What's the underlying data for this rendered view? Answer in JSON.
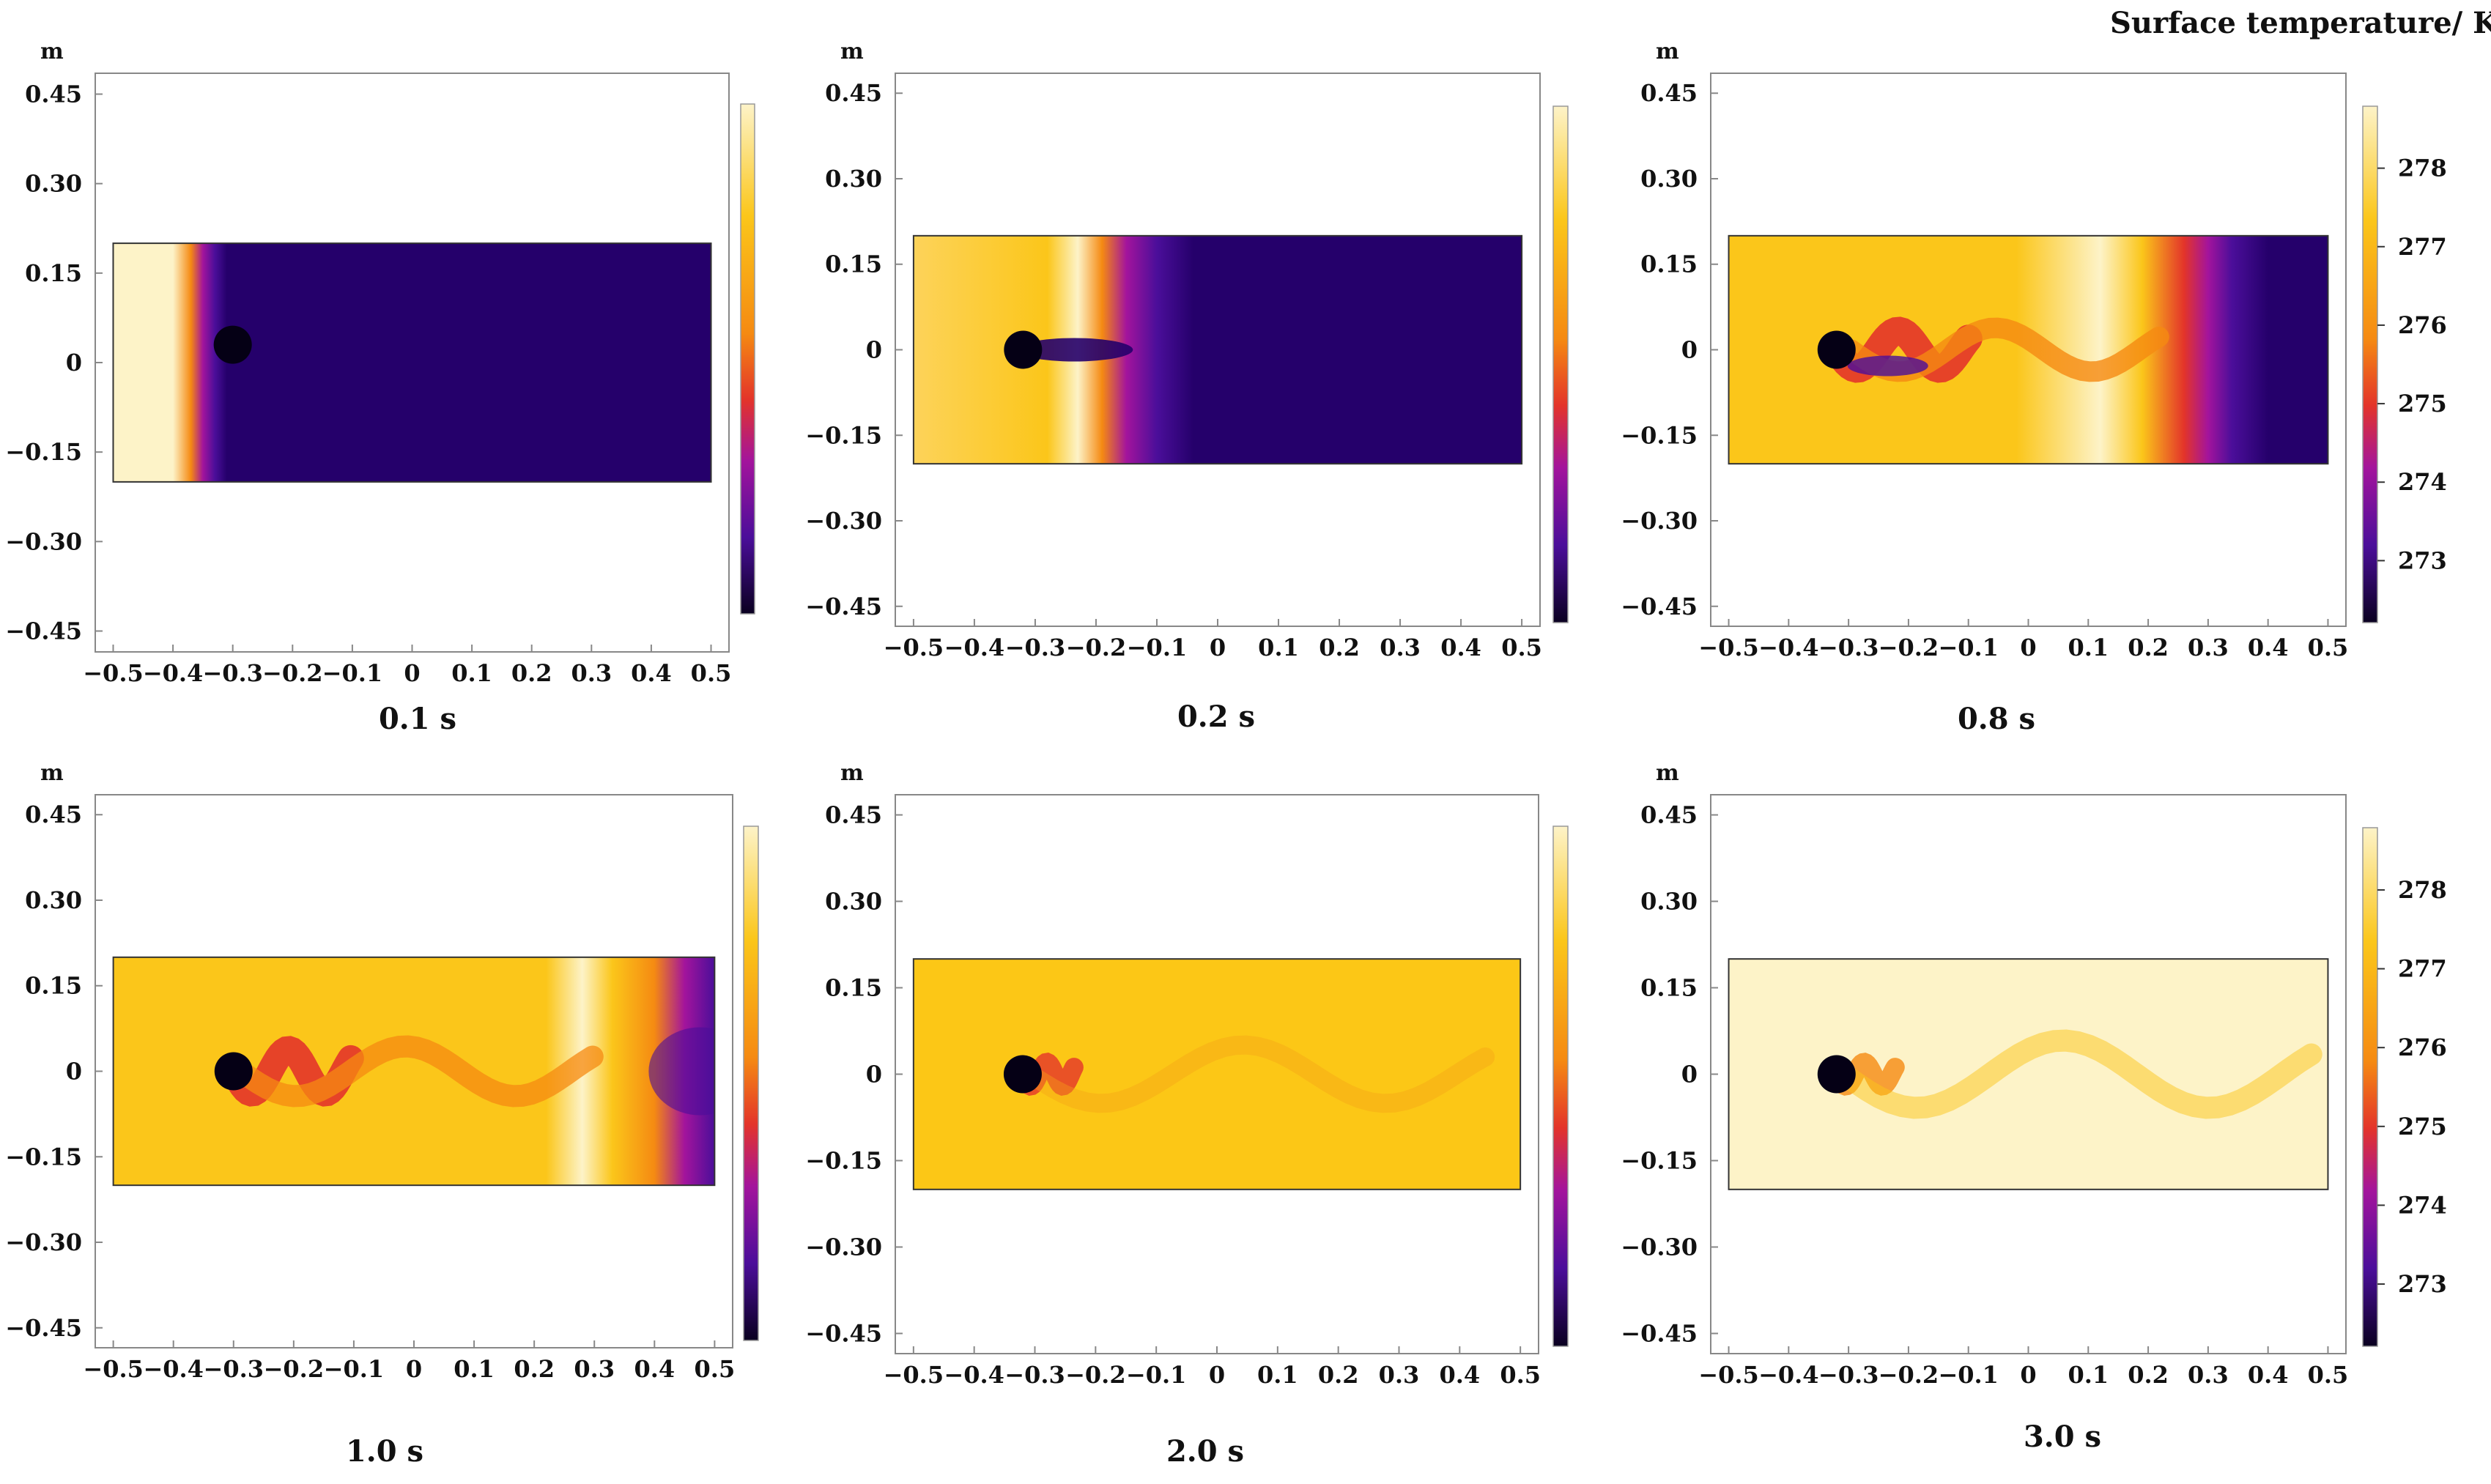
{
  "figure_title": "Surface temperature/ K",
  "colors": {
    "cold": "#25006b",
    "cold_dark": "#0a0020",
    "purple": "#4b0e9a",
    "magenta": "#a3149c",
    "red": "#e3342a",
    "orange": "#f58a12",
    "warm": "#fbc61a",
    "warm_light": "#fdd35a",
    "hot": "#fdf3c8",
    "cylinder": "#050015",
    "frame": "#888888"
  },
  "colorbar": {
    "ticks": [
      "278",
      "277",
      "276",
      "275",
      "274",
      "273"
    ]
  },
  "chart_data": [
    {
      "type": "heatmap",
      "title": "0.1 s",
      "ylabel": "m",
      "xlim": [
        -0.5,
        0.5
      ],
      "ylim": [
        -0.45,
        0.45
      ],
      "xticks": [
        "-0.5",
        "-0.4",
        "-0.3",
        "-0.2",
        "-0.1",
        "0",
        "0.1",
        "0.2",
        "0.3",
        "0.4",
        "0.5"
      ],
      "yticks": [
        "0.45",
        "0.30",
        "0.15",
        "0",
        "-0.15",
        "-0.30",
        "-0.45"
      ],
      "domain_x": [
        -0.5,
        0.5
      ],
      "domain_y": [
        -0.2,
        0.2
      ],
      "cylinder_center": [
        -0.3,
        0.03
      ],
      "field": "cold domain with hot inlet front near x = -0.4",
      "show_colorbar_ticks": false
    },
    {
      "type": "heatmap",
      "title": "0.2 s",
      "ylabel": "m",
      "xlim": [
        -0.5,
        0.5
      ],
      "ylim": [
        -0.45,
        0.45
      ],
      "xticks": [
        "-0.5",
        "-0.4",
        "-0.3",
        "-0.2",
        "-0.1",
        "0",
        "0.1",
        "0.2",
        "0.3",
        "0.4",
        "0.5"
      ],
      "yticks": [
        "0.45",
        "0.30",
        "0.15",
        "0",
        "-0.15",
        "-0.30",
        "-0.45"
      ],
      "domain_x": [
        -0.5,
        0.5
      ],
      "domain_y": [
        -0.2,
        0.2
      ],
      "cylinder_center": [
        -0.32,
        0.0
      ],
      "field": "warm front advanced to x = -0.2",
      "show_colorbar_ticks": false
    },
    {
      "type": "heatmap",
      "title": "0.8 s",
      "ylabel": "m",
      "xlim": [
        -0.5,
        0.5
      ],
      "ylim": [
        -0.45,
        0.45
      ],
      "xticks": [
        "-0.5",
        "-0.4",
        "-0.3",
        "-0.2",
        "-0.1",
        "0",
        "0.1",
        "0.2",
        "0.3",
        "0.4",
        "0.5"
      ],
      "yticks": [
        "0.45",
        "0.30",
        "0.15",
        "0",
        "-0.15",
        "-0.30",
        "-0.45"
      ],
      "domain_x": [
        -0.5,
        0.5
      ],
      "domain_y": [
        -0.2,
        0.2
      ],
      "cylinder_center": [
        -0.32,
        0.0
      ],
      "field": "front near x = 0.2, wake shedding behind cylinder",
      "show_colorbar_ticks": true
    },
    {
      "type": "heatmap",
      "title": "1.0 s",
      "ylabel": "m",
      "xlim": [
        -0.5,
        0.5
      ],
      "ylim": [
        -0.45,
        0.45
      ],
      "xticks": [
        "-0.5",
        "-0.4",
        "-0.3",
        "-0.2",
        "-0.1",
        "0",
        "0.1",
        "0.2",
        "0.3",
        "0.4",
        "0.5"
      ],
      "yticks": [
        "0.45",
        "0.30",
        "0.15",
        "0",
        "-0.15",
        "-0.30",
        "-0.45"
      ],
      "domain_x": [
        -0.5,
        0.5
      ],
      "domain_y": [
        -0.2,
        0.2
      ],
      "cylinder_center": [
        -0.3,
        0.0
      ],
      "field": "front near x = 0.35, wavy wake",
      "show_colorbar_ticks": false
    },
    {
      "type": "heatmap",
      "title": "2.0 s",
      "ylabel": "m",
      "xlim": [
        -0.5,
        0.5
      ],
      "ylim": [
        -0.45,
        0.45
      ],
      "xticks": [
        "-0.5",
        "-0.4",
        "-0.3",
        "-0.2",
        "-0.1",
        "0",
        "0.1",
        "0.2",
        "0.3",
        "0.4",
        "0.5"
      ],
      "yticks": [
        "0.45",
        "0.30",
        "0.15",
        "0",
        "-0.15",
        "-0.30",
        "-0.45"
      ],
      "domain_x": [
        -0.5,
        0.5
      ],
      "domain_y": [
        -0.2,
        0.2
      ],
      "cylinder_center": [
        -0.32,
        0.0
      ],
      "field": "nearly uniform warm field with faint vortex street",
      "show_colorbar_ticks": false
    },
    {
      "type": "heatmap",
      "title": "3.0 s",
      "ylabel": "m",
      "xlim": [
        -0.5,
        0.5
      ],
      "ylim": [
        -0.45,
        0.45
      ],
      "xticks": [
        "-0.5",
        "-0.4",
        "-0.3",
        "-0.2",
        "-0.1",
        "0",
        "0.1",
        "0.2",
        "0.3",
        "0.4",
        "0.5"
      ],
      "yticks": [
        "0.45",
        "0.30",
        "0.15",
        "0",
        "-0.15",
        "-0.30",
        "-0.45"
      ],
      "domain_x": [
        -0.5,
        0.5
      ],
      "domain_y": [
        -0.2,
        0.2
      ],
      "cylinder_center": [
        -0.32,
        0.0
      ],
      "field": "uniform hot field with vortex street",
      "show_colorbar_ticks": true
    }
  ]
}
